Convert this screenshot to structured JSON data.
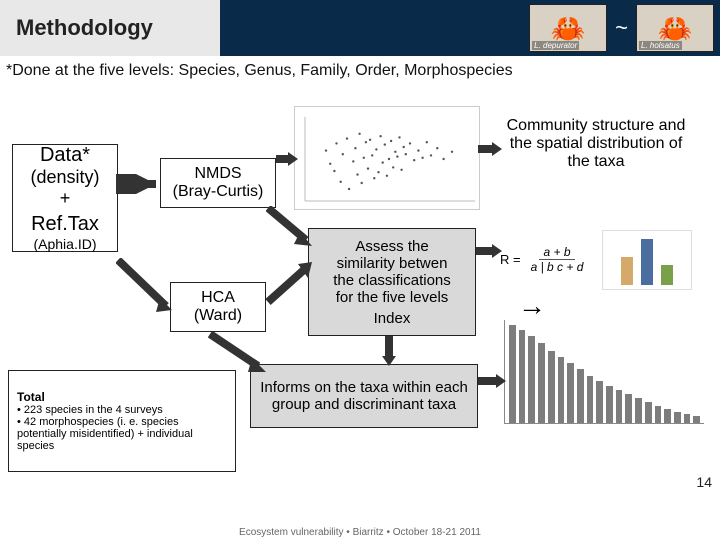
{
  "header": {
    "title": "Methodology",
    "crab1": {
      "label": "L. depurator",
      "bg": "#d4c9b4"
    },
    "crab2": {
      "label": "L. holsatus",
      "bg": "#e0c9a8"
    }
  },
  "subtitle": "*Done at the five levels: Species, Genus, Family, Order, Morphospecies",
  "data_box": {
    "l1": "Data*",
    "l2": "(density)",
    "l3": "+",
    "l4": "Ref.Tax",
    "l5": "(Aphia.ID)"
  },
  "nmds_box": {
    "l1": "NMDS",
    "l2": "(Bray-Curtis)"
  },
  "hca_box": {
    "l1": "HCA",
    "l2": "(Ward)"
  },
  "community_box": "Community structure and the spatial distribution of the taxa",
  "assess_box": {
    "l1": "Assess the",
    "l2": "similarity betwen",
    "l3": "the classifications",
    "l4": "for the five levels",
    "l5": "Index"
  },
  "informs_box": "Informs on the taxa within each group and discriminant taxa",
  "total_box": {
    "title": "Total",
    "b1": "• 223 species in the 4 surveys",
    "b2": "• 42 morphospecies (i. e. species potentially misidentified) + individual species"
  },
  "formula": {
    "lhs": "R =",
    "num": "a + b",
    "den": "a | b   c + d"
  },
  "arrow_symbol": "→",
  "scatter": {
    "type": "scatter",
    "background": "#ffffff",
    "axis_color": "#bbbbbb",
    "point_color": "#555555",
    "point_radius": 1.2,
    "xlim": [
      -3,
      5
    ],
    "ylim": [
      -3,
      4
    ],
    "points": [
      [
        -2,
        1.2
      ],
      [
        -1.8,
        0.1
      ],
      [
        -1.6,
        -0.5
      ],
      [
        -1.5,
        1.8
      ],
      [
        -1.3,
        -1.4
      ],
      [
        -1.2,
        0.9
      ],
      [
        -1,
        2.2
      ],
      [
        -0.9,
        -2
      ],
      [
        -0.7,
        0.3
      ],
      [
        -0.6,
        1.4
      ],
      [
        -0.5,
        -0.8
      ],
      [
        -0.4,
        2.6
      ],
      [
        -0.3,
        -1.5
      ],
      [
        -0.2,
        0.6
      ],
      [
        -0.1,
        1.9
      ],
      [
        0,
        -0.3
      ],
      [
        0.1,
        2.1
      ],
      [
        0.2,
        0.8
      ],
      [
        0.3,
        -1.1
      ],
      [
        0.4,
        1.3
      ],
      [
        0.5,
        -0.6
      ],
      [
        0.6,
        2.4
      ],
      [
        0.7,
        0.2
      ],
      [
        0.8,
        1.7
      ],
      [
        0.9,
        -0.9
      ],
      [
        1,
        0.5
      ],
      [
        1.1,
        2
      ],
      [
        1.2,
        -0.2
      ],
      [
        1.3,
        1.1
      ],
      [
        1.4,
        0.7
      ],
      [
        1.5,
        2.3
      ],
      [
        1.6,
        -0.4
      ],
      [
        1.7,
        1.5
      ],
      [
        1.8,
        0.9
      ],
      [
        2,
        1.8
      ],
      [
        2.2,
        0.4
      ],
      [
        2.4,
        1.2
      ],
      [
        2.6,
        0.6
      ],
      [
        2.8,
        1.9
      ],
      [
        3,
        0.8
      ],
      [
        3.3,
        1.4
      ],
      [
        3.6,
        0.5
      ],
      [
        4,
        1.1
      ]
    ]
  },
  "bar_chart": {
    "type": "bar",
    "bar_color": "#7d7d7d",
    "values": [
      95,
      90,
      84,
      78,
      70,
      64,
      58,
      52,
      46,
      41,
      36,
      32,
      28,
      24,
      20,
      17,
      14,
      11,
      9,
      7
    ]
  },
  "mini_chart": {
    "colors": [
      "#d4a96a",
      "#4a6ea0",
      "#7aa04a"
    ],
    "values": [
      28,
      46,
      20
    ]
  },
  "footer": "Ecosystem vulnerability  • Biarritz • October 18-21 2011",
  "page_num": "14",
  "arrows": {
    "stroke": "#333333",
    "width": 10
  }
}
